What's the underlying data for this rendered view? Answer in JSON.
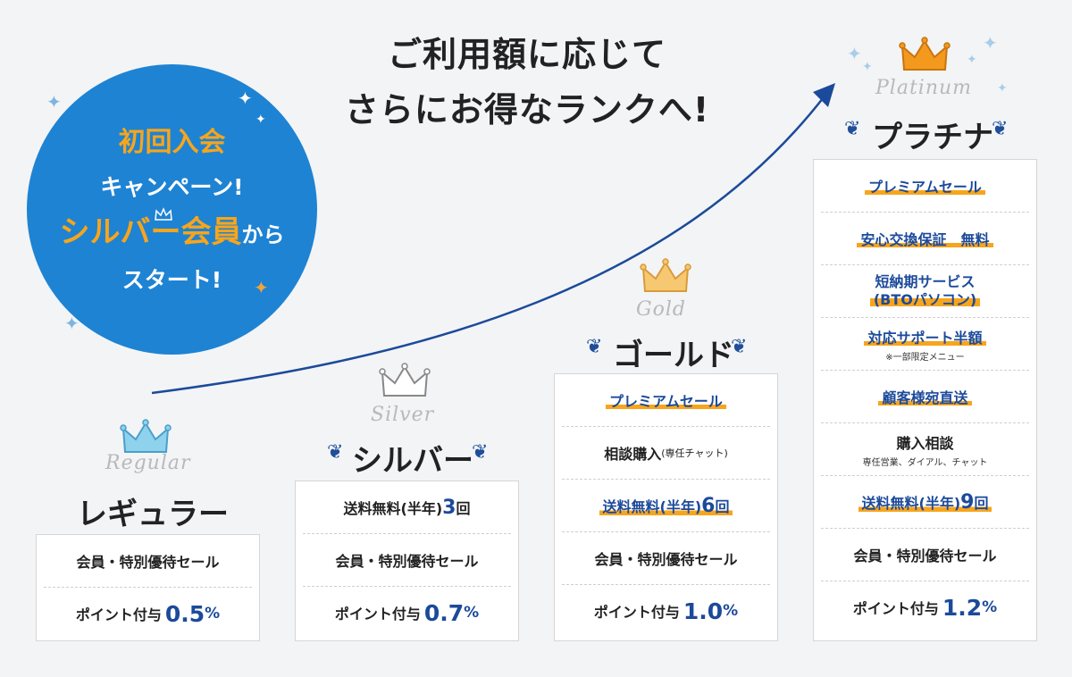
{
  "headline": {
    "line1": "ご利用額に応じて",
    "line2": "さらにお得なランクへ!"
  },
  "campaign": {
    "line1": "初回入会",
    "line2": "キャンペーン!",
    "line3_main": "シルバー会員",
    "line3_suffix": "から",
    "line4": "スタート!"
  },
  "tiers": {
    "regular": {
      "script": "Regular",
      "name": "レギュラー",
      "rows": [
        "会員・特別優待セール"
      ],
      "points_label": "ポイント付与",
      "points_value": "0.5",
      "points_unit": "%"
    },
    "silver": {
      "script": "Silver",
      "name": "シルバー",
      "shipping_label": "送料無料(半年)",
      "shipping_count": "3",
      "shipping_unit": "回",
      "rows": [
        "会員・特別優待セール"
      ],
      "points_label": "ポイント付与",
      "points_value": "0.7",
      "points_unit": "%"
    },
    "gold": {
      "script": "Gold",
      "name": "ゴールド",
      "premium_sale": "プレミアムセール",
      "consult": "相談購入",
      "consult_note": "(専任チャット)",
      "shipping_label": "送料無料(半年)",
      "shipping_count": "6",
      "shipping_unit": "回",
      "rows": [
        "会員・特別優待セール"
      ],
      "points_label": "ポイント付与",
      "points_value": "1.0",
      "points_unit": "%"
    },
    "platinum": {
      "script": "Platinum",
      "name": "プラチナ",
      "premium_sale": "プレミアムセール",
      "exchange": "安心交換保証　無料",
      "short_delivery_1": "短納期サービス",
      "short_delivery_2": "(BTOパソコン)",
      "support": "対応サポート半額",
      "support_note": "※一部限定メニュー",
      "direct_ship": "顧客様宛直送",
      "consult": "購入相談",
      "consult_note": "専任営業、ダイアル、チャット",
      "shipping_label": "送料無料(半年)",
      "shipping_count": "9",
      "shipping_unit": "回",
      "rows": [
        "会員・特別優待セール"
      ],
      "points_label": "ポイント付与",
      "points_value": "1.2",
      "points_unit": "%"
    }
  },
  "colors": {
    "accent_blue": "#1e83d3",
    "accent_orange": "#f7a51c",
    "navy": "#1c4a9a"
  },
  "icons": [
    "crown-icon",
    "laurel-icon",
    "sparkle-icon",
    "arrow-icon"
  ]
}
